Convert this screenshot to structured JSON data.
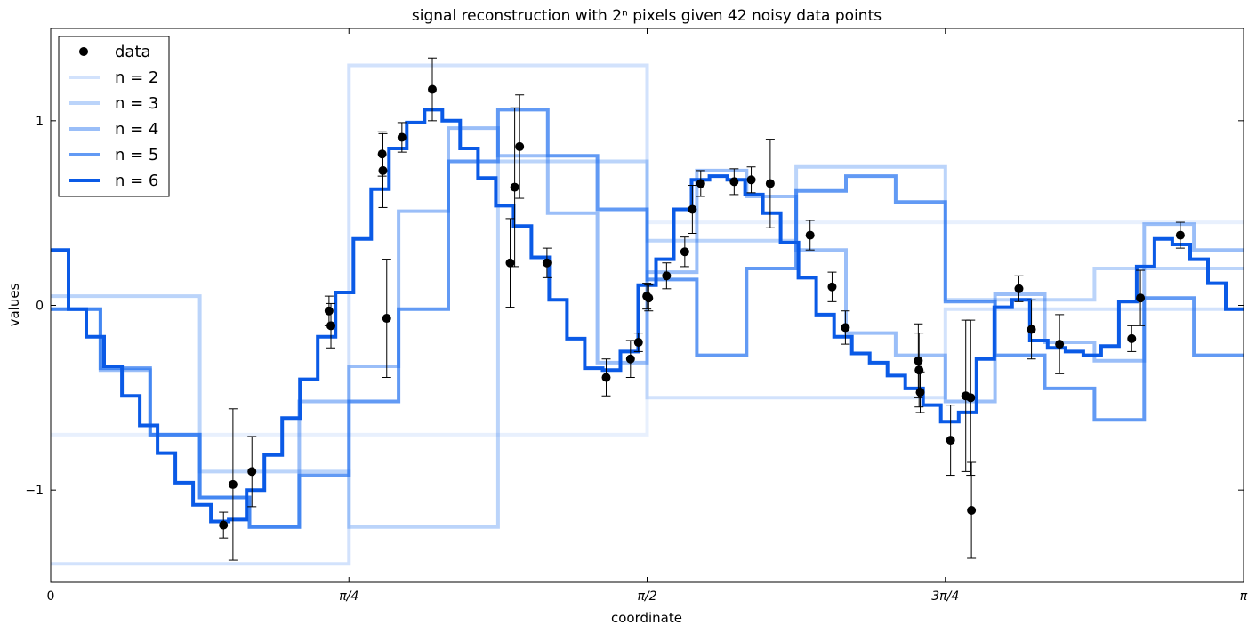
{
  "chart_data": {
    "type": "line",
    "title": "signal reconstruction with 2ⁿ pixels given 42 noisy data points",
    "xlabel": "coordinate",
    "ylabel": "values",
    "xlim": [
      0,
      3.14159265
    ],
    "ylim": [
      -1.5,
      1.5
    ],
    "xticks": [
      {
        "value": 0,
        "label": "0"
      },
      {
        "value": 0.78539816,
        "label": "π/4"
      },
      {
        "value": 1.57079633,
        "label": "π/2"
      },
      {
        "value": 2.35619449,
        "label": "3π/4"
      },
      {
        "value": 3.14159265,
        "label": "π"
      }
    ],
    "yticks": [
      {
        "value": -1,
        "label": "−1"
      },
      {
        "value": 0,
        "label": "0"
      },
      {
        "value": 1,
        "label": "1"
      }
    ],
    "grid": false,
    "legend_position": "top-left",
    "legend": [
      {
        "label": "data",
        "kind": "marker",
        "color": "#000000"
      },
      {
        "label": "n = 2",
        "kind": "line",
        "color": "#1f6ff0",
        "opacity": 0.2
      },
      {
        "label": "n = 3",
        "kind": "line",
        "color": "#1f6ff0",
        "opacity": 0.3
      },
      {
        "label": "n = 4",
        "kind": "line",
        "color": "#1f6ff0",
        "opacity": 0.45
      },
      {
        "label": "n = 5",
        "kind": "line",
        "color": "#1f6ff0",
        "opacity": 0.7
      },
      {
        "label": "n = 6",
        "kind": "line",
        "color": "#0a5ae6",
        "opacity": 1.0
      }
    ],
    "series": [
      {
        "name": "n = 1",
        "color": "#1f6ff0",
        "opacity": 0.1,
        "values": [
          -0.7,
          0.45
        ]
      },
      {
        "name": "n = 2",
        "color": "#1f6ff0",
        "opacity": 0.2,
        "values": [
          -1.4,
          1.3,
          -0.5,
          -0.02
        ]
      },
      {
        "name": "n = 3",
        "color": "#1f6ff0",
        "opacity": 0.3,
        "values": [
          0.05,
          -0.9,
          -1.2,
          0.78,
          0.35,
          0.75,
          0.03,
          0.2
        ]
      },
      {
        "name": "n = 4",
        "color": "#1f6ff0",
        "opacity": 0.45,
        "values": [
          -0.02,
          -0.35,
          -0.7,
          -1.04,
          -1.2,
          -0.52,
          -0.33,
          0.51,
          0.96,
          0.81,
          0.5,
          -0.31,
          0.18,
          0.73,
          0.59,
          0.3,
          -0.15,
          -0.27,
          -0.52,
          0.06,
          -0.2,
          -0.3,
          0.44,
          0.3
        ]
      },
      {
        "name": "n = 5",
        "color": "#1f6ff0",
        "opacity": 0.7,
        "values": [
          -0.02,
          -0.34,
          -0.7,
          -1.04,
          -1.2,
          -0.92,
          -0.52,
          -0.02,
          0.78,
          1.06,
          0.81,
          0.52,
          0.14,
          -0.27,
          0.2,
          0.62,
          0.7,
          0.56,
          0.02,
          -0.27,
          -0.45,
          -0.62,
          0.04,
          -0.27
        ]
      },
      {
        "name": "n = 6",
        "color": "#0a5ae6",
        "opacity": 1.0,
        "values": [
          0.3,
          -0.02,
          -0.17,
          -0.33,
          -0.49,
          -0.65,
          -0.8,
          -0.96,
          -1.08,
          -1.17,
          -1.16,
          -1.0,
          -0.81,
          -0.61,
          -0.4,
          -0.17,
          0.07,
          0.36,
          0.63,
          0.85,
          0.99,
          1.06,
          1.0,
          0.85,
          0.69,
          0.54,
          0.43,
          0.26,
          0.03,
          -0.18,
          -0.34,
          -0.35,
          -0.25,
          0.11,
          0.25,
          0.52,
          0.68,
          0.7,
          0.68,
          0.6,
          0.5,
          0.34,
          0.15,
          -0.05,
          -0.17,
          -0.26,
          -0.31,
          -0.38,
          -0.45,
          -0.54,
          -0.63,
          -0.58,
          -0.29,
          -0.01,
          0.03,
          -0.19,
          -0.23,
          -0.25,
          -0.27,
          -0.22,
          0.02,
          0.21,
          0.36,
          0.33,
          0.25,
          0.12,
          -0.02
        ]
      }
    ],
    "data_points": [
      {
        "x": 0.455,
        "y": -1.19,
        "err": 0.07
      },
      {
        "x": 0.48,
        "y": -0.97,
        "err": 0.41
      },
      {
        "x": 0.53,
        "y": -0.9,
        "err": 0.19
      },
      {
        "x": 0.733,
        "y": -0.03,
        "err": 0.08
      },
      {
        "x": 0.738,
        "y": -0.11,
        "err": 0.12
      },
      {
        "x": 0.873,
        "y": 0.82,
        "err": 0.12
      },
      {
        "x": 0.875,
        "y": 0.73,
        "err": 0.2
      },
      {
        "x": 0.885,
        "y": -0.07,
        "err": 0.32
      },
      {
        "x": 0.925,
        "y": 0.91,
        "err": 0.08
      },
      {
        "x": 1.005,
        "y": 1.17,
        "err": 0.17
      },
      {
        "x": 1.21,
        "y": 0.23,
        "err": 0.24
      },
      {
        "x": 1.222,
        "y": 0.64,
        "err": 0.43
      },
      {
        "x": 1.235,
        "y": 0.86,
        "err": 0.28
      },
      {
        "x": 1.307,
        "y": 0.23,
        "err": 0.08
      },
      {
        "x": 1.463,
        "y": -0.39,
        "err": 0.1
      },
      {
        "x": 1.527,
        "y": -0.29,
        "err": 0.1
      },
      {
        "x": 1.548,
        "y": -0.2,
        "err": 0.05
      },
      {
        "x": 1.57,
        "y": 0.05,
        "err": 0.07
      },
      {
        "x": 1.575,
        "y": 0.04,
        "err": 0.07
      },
      {
        "x": 1.622,
        "y": 0.16,
        "err": 0.07
      },
      {
        "x": 1.67,
        "y": 0.29,
        "err": 0.08
      },
      {
        "x": 1.69,
        "y": 0.52,
        "err": 0.13
      },
      {
        "x": 1.712,
        "y": 0.66,
        "err": 0.07
      },
      {
        "x": 1.8,
        "y": 0.67,
        "err": 0.07
      },
      {
        "x": 1.845,
        "y": 0.68,
        "err": 0.07
      },
      {
        "x": 1.895,
        "y": 0.66,
        "err": 0.24
      },
      {
        "x": 2.0,
        "y": 0.38,
        "err": 0.08
      },
      {
        "x": 2.058,
        "y": 0.1,
        "err": 0.08
      },
      {
        "x": 2.093,
        "y": -0.12,
        "err": 0.09
      },
      {
        "x": 2.285,
        "y": -0.3,
        "err": 0.2
      },
      {
        "x": 2.287,
        "y": -0.35,
        "err": 0.2
      },
      {
        "x": 2.29,
        "y": -0.47,
        "err": 0.11
      },
      {
        "x": 2.37,
        "y": -0.73,
        "err": 0.19
      },
      {
        "x": 2.41,
        "y": -0.49,
        "err": 0.41
      },
      {
        "x": 2.423,
        "y": -0.5,
        "err": 0.42
      },
      {
        "x": 2.425,
        "y": -1.11,
        "err": 0.26
      },
      {
        "x": 2.55,
        "y": 0.09,
        "err": 0.07
      },
      {
        "x": 2.583,
        "y": -0.13,
        "err": 0.16
      },
      {
        "x": 2.657,
        "y": -0.21,
        "err": 0.16
      },
      {
        "x": 2.847,
        "y": -0.18,
        "err": 0.07
      },
      {
        "x": 2.87,
        "y": 0.04,
        "err": 0.15
      },
      {
        "x": 2.975,
        "y": 0.38,
        "err": 0.07
      }
    ]
  }
}
